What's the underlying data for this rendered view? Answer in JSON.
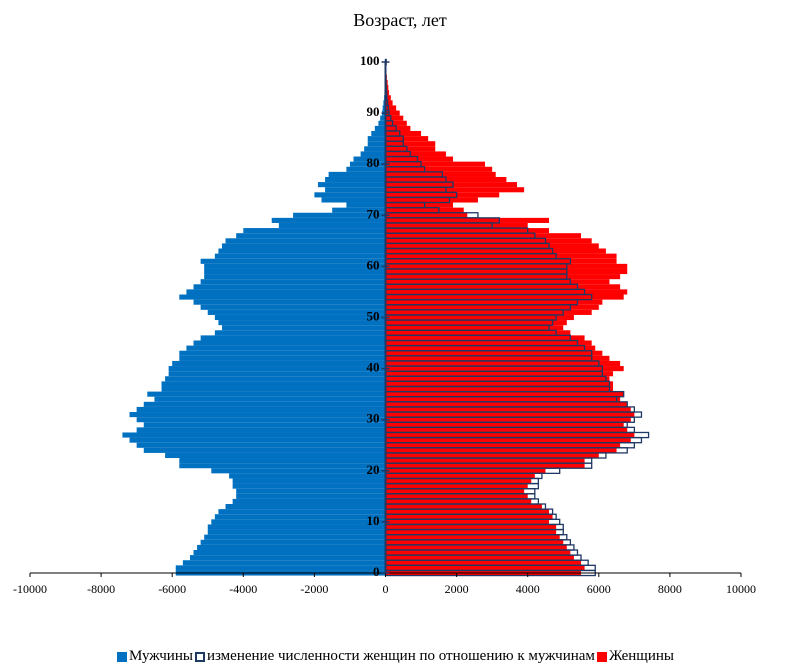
{
  "chart_data": {
    "type": "bar",
    "orientation": "horizontal",
    "title": "Возраст, лет",
    "categories": [
      0,
      1,
      2,
      3,
      4,
      5,
      6,
      7,
      8,
      9,
      10,
      11,
      12,
      13,
      14,
      15,
      16,
      17,
      18,
      19,
      20,
      21,
      22,
      23,
      24,
      25,
      26,
      27,
      28,
      29,
      30,
      31,
      32,
      33,
      34,
      35,
      36,
      37,
      38,
      39,
      40,
      41,
      42,
      43,
      44,
      45,
      46,
      47,
      48,
      49,
      50,
      51,
      52,
      53,
      54,
      55,
      56,
      57,
      58,
      59,
      60,
      61,
      62,
      63,
      64,
      65,
      66,
      67,
      68,
      69,
      70,
      71,
      72,
      73,
      74,
      75,
      76,
      77,
      78,
      79,
      80,
      81,
      82,
      83,
      84,
      85,
      86,
      87,
      88,
      89,
      90,
      91,
      92,
      93,
      94,
      95,
      96,
      97,
      98,
      99,
      100
    ],
    "series": [
      {
        "name": "Мужчины",
        "color": "#0070c0",
        "outline": false,
        "values": [
          -5900,
          -5900,
          -5700,
          -5500,
          -5400,
          -5300,
          -5200,
          -5100,
          -5000,
          -5000,
          -4900,
          -4800,
          -4700,
          -4500,
          -4300,
          -4200,
          -4200,
          -4300,
          -4300,
          -4400,
          -4900,
          -5800,
          -5800,
          -6200,
          -6800,
          -7000,
          -7200,
          -7400,
          -7000,
          -6800,
          -7000,
          -7200,
          -7000,
          -6800,
          -6500,
          -6700,
          -6300,
          -6300,
          -6200,
          -6100,
          -6100,
          -6000,
          -5800,
          -5800,
          -5600,
          -5400,
          -5200,
          -4800,
          -4600,
          -4700,
          -4800,
          -5000,
          -5200,
          -5400,
          -5800,
          -5600,
          -5400,
          -5200,
          -5100,
          -5100,
          -5100,
          -5200,
          -4800,
          -4700,
          -4600,
          -4500,
          -4200,
          -4000,
          -3000,
          -3200,
          -2600,
          -1500,
          -1100,
          -1800,
          -2000,
          -1700,
          -1900,
          -1700,
          -1600,
          -1100,
          -1000,
          -900,
          -700,
          -600,
          -500,
          -500,
          -400,
          -300,
          -200,
          -150,
          -100,
          -80,
          -60,
          -40,
          -30,
          -20,
          -15,
          -10,
          -5,
          -5,
          -20
        ]
      },
      {
        "name": "Женщины",
        "color": "#ff0000",
        "outline": false,
        "values": [
          5500,
          5600,
          5500,
          5300,
          5200,
          5100,
          5000,
          4900,
          4800,
          4800,
          4600,
          4700,
          4600,
          4400,
          4100,
          4000,
          3900,
          4000,
          4100,
          4200,
          4500,
          5600,
          5600,
          6000,
          6500,
          6600,
          6900,
          7000,
          6800,
          6700,
          6900,
          7000,
          6900,
          6800,
          6600,
          6700,
          6400,
          6400,
          6300,
          6400,
          6700,
          6600,
          6300,
          6100,
          5900,
          5800,
          5600,
          5200,
          5000,
          5100,
          5300,
          5800,
          6000,
          6100,
          6700,
          6800,
          6600,
          6300,
          6600,
          6800,
          6800,
          6500,
          6500,
          6200,
          6000,
          5800,
          5500,
          4600,
          4000,
          4600,
          2300,
          2200,
          1900,
          2600,
          3200,
          3900,
          3700,
          3400,
          3100,
          3000,
          2800,
          1900,
          1700,
          1400,
          1400,
          1200,
          1000,
          700,
          600,
          500,
          400,
          300,
          200,
          150,
          100,
          80,
          60,
          40,
          20,
          10,
          30
        ]
      },
      {
        "name": "изменение численности женщин по отношению к мужчинам",
        "color": "#1f3864",
        "outline": true,
        "values": [
          5900,
          5900,
          5700,
          5500,
          5400,
          5300,
          5200,
          5100,
          5000,
          5000,
          4900,
          4800,
          4700,
          4500,
          4300,
          4200,
          4200,
          4300,
          4300,
          4400,
          4900,
          5800,
          5800,
          6200,
          6800,
          7000,
          7200,
          7400,
          7000,
          6800,
          7000,
          7200,
          7000,
          6800,
          6500,
          6700,
          6300,
          6300,
          6200,
          6100,
          6100,
          6000,
          5800,
          5800,
          5600,
          5400,
          5200,
          4800,
          4600,
          4700,
          4800,
          5000,
          5200,
          5400,
          5800,
          5600,
          5400,
          5200,
          5100,
          5100,
          5100,
          5200,
          4800,
          4700,
          4600,
          4500,
          4200,
          4000,
          3000,
          3200,
          2600,
          1500,
          1100,
          1800,
          2000,
          1700,
          1900,
          1700,
          1600,
          1100,
          1000,
          900,
          700,
          600,
          500,
          500,
          400,
          300,
          200,
          150,
          100,
          80,
          60,
          40,
          30,
          20,
          15,
          10,
          5,
          5,
          20
        ]
      }
    ],
    "legend_order": [
      0,
      2,
      1
    ],
    "xlim": [
      -10000,
      10000
    ],
    "xticks": [
      -10000,
      -8000,
      -6000,
      -4000,
      -2000,
      0,
      2000,
      4000,
      6000,
      8000,
      10000
    ],
    "ylim": [
      0,
      100
    ],
    "yticks": [
      0,
      10,
      20,
      30,
      40,
      50,
      60,
      70,
      80,
      90,
      100
    ]
  }
}
